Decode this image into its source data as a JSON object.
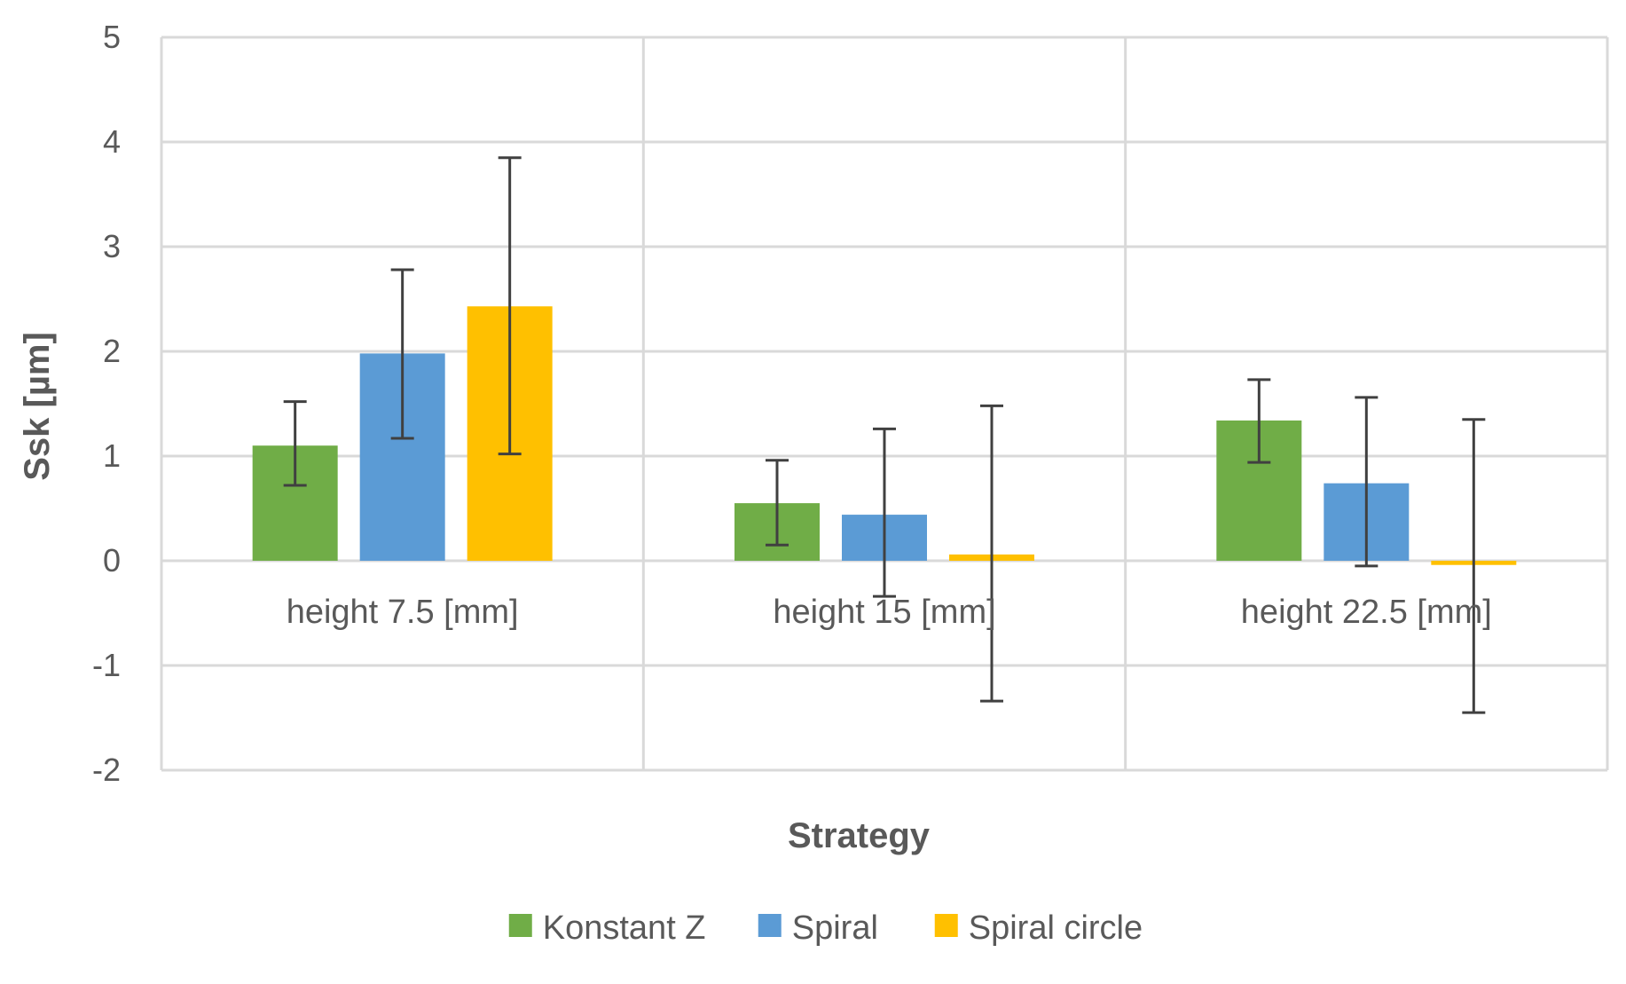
{
  "chart_data": {
    "type": "bar",
    "title": "",
    "xlabel": "Strategy",
    "ylabel": "Ssk [µm]",
    "ylim": [
      -2,
      5
    ],
    "yticks": [
      "5",
      "4",
      "3",
      "2",
      "1",
      "0",
      "-1",
      "-2"
    ],
    "grid": true,
    "legend_position": "bottom",
    "categories": [
      "height 7.5 [mm]",
      "height 15 [mm]",
      "height 22.5 [mm]"
    ],
    "series": [
      {
        "name": "Konstant Z",
        "color": "#70AD47",
        "values": [
          1.1,
          0.55,
          1.34
        ],
        "error_low": [
          0.72,
          0.15,
          0.94
        ],
        "error_high": [
          1.52,
          0.96,
          1.73
        ]
      },
      {
        "name": "Spiral",
        "color": "#5B9BD5",
        "values": [
          1.98,
          0.44,
          0.74
        ],
        "error_low": [
          1.17,
          -0.34,
          -0.05
        ],
        "error_high": [
          2.78,
          1.26,
          1.56
        ]
      },
      {
        "name": "Spiral circle",
        "color": "#FFC000",
        "values": [
          2.43,
          0.06,
          -0.04
        ],
        "error_low": [
          1.02,
          -1.34,
          -1.45
        ],
        "error_high": [
          3.85,
          1.48,
          1.35
        ]
      }
    ]
  }
}
